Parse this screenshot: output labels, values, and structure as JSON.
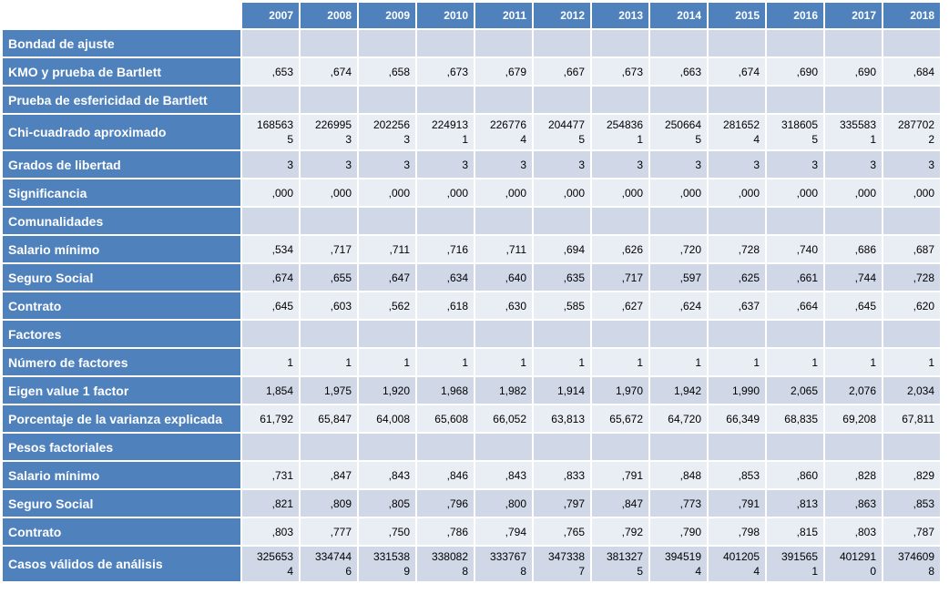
{
  "years": [
    "2007",
    "2008",
    "2009",
    "2010",
    "2011",
    "2012",
    "2013",
    "2014",
    "2015",
    "2016",
    "2017",
    "2018"
  ],
  "rows": [
    {
      "label": "Bondad de ajuste",
      "values": [
        "",
        "",
        "",
        "",
        "",
        "",
        "",
        "",
        "",
        "",
        "",
        ""
      ],
      "shade": "light"
    },
    {
      "label": "KMO y prueba de Bartlett",
      "values": [
        ",653",
        ",674",
        ",658",
        ",673",
        ",679",
        ",667",
        ",673",
        ",663",
        ",674",
        ",690",
        ",690",
        ",684"
      ],
      "shade": "pale"
    },
    {
      "label": "Prueba de esfericidad de Bartlett",
      "values": [
        "",
        "",
        "",
        "",
        "",
        "",
        "",
        "",
        "",
        "",
        "",
        ""
      ],
      "shade": "light"
    },
    {
      "label": "Chi-cuadrado aproximado",
      "values": [
        "1685635",
        "2269953",
        "2022563",
        "2249131",
        "2267764",
        "2044775",
        "2548361",
        "2506645",
        "2816524",
        "3186055",
        "3355831",
        "2877022"
      ],
      "shade": "pale",
      "tall": true
    },
    {
      "label": "Grados de libertad",
      "values": [
        "3",
        "3",
        "3",
        "3",
        "3",
        "3",
        "3",
        "3",
        "3",
        "3",
        "3",
        "3"
      ],
      "shade": "light"
    },
    {
      "label": "Significancia",
      "values": [
        ",000",
        ",000",
        ",000",
        ",000",
        ",000",
        ",000",
        ",000",
        ",000",
        ",000",
        ",000",
        ",000",
        ",000"
      ],
      "shade": "pale"
    },
    {
      "label": "Comunalidades",
      "values": [
        "",
        "",
        "",
        "",
        "",
        "",
        "",
        "",
        "",
        "",
        "",
        ""
      ],
      "shade": "light"
    },
    {
      "label": "Salario mínimo",
      "values": [
        ",534",
        ",717",
        ",711",
        ",716",
        ",711",
        ",694",
        ",626",
        ",720",
        ",728",
        ",740",
        ",686",
        ",687"
      ],
      "shade": "pale"
    },
    {
      "label": "Seguro Social",
      "values": [
        ",674",
        ",655",
        ",647",
        ",634",
        ",640",
        ",635",
        ",717",
        ",597",
        ",625",
        ",661",
        ",744",
        ",728"
      ],
      "shade": "light"
    },
    {
      "label": "Contrato",
      "values": [
        ",645",
        ",603",
        ",562",
        ",618",
        ",630",
        ",585",
        ",627",
        ",624",
        ",637",
        ",664",
        ",645",
        ",620"
      ],
      "shade": "pale"
    },
    {
      "label": "Factores",
      "values": [
        "",
        "",
        "",
        "",
        "",
        "",
        "",
        "",
        "",
        "",
        "",
        ""
      ],
      "shade": "light"
    },
    {
      "label": "Número de factores",
      "values": [
        "1",
        "1",
        "1",
        "1",
        "1",
        "1",
        "1",
        "1",
        "1",
        "1",
        "1",
        "1"
      ],
      "shade": "pale"
    },
    {
      "label": "Eigen value 1 factor",
      "values": [
        "1,854",
        "1,975",
        "1,920",
        "1,968",
        "1,982",
        "1,914",
        "1,970",
        "1,942",
        "1,990",
        "2,065",
        "2,076",
        "2,034"
      ],
      "shade": "light"
    },
    {
      "label": "Porcentaje de la varianza explicada",
      "values": [
        "61,792",
        "65,847",
        "64,008",
        "65,608",
        "66,052",
        "63,813",
        "65,672",
        "64,720",
        "66,349",
        "68,835",
        "69,208",
        "67,811"
      ],
      "shade": "pale"
    },
    {
      "label": "Pesos factoriales",
      "values": [
        "",
        "",
        "",
        "",
        "",
        "",
        "",
        "",
        "",
        "",
        "",
        ""
      ],
      "shade": "light"
    },
    {
      "label": "Salario mínimo",
      "values": [
        ",731",
        ",847",
        ",843",
        ",846",
        ",843",
        ",833",
        ",791",
        ",848",
        ",853",
        ",860",
        ",828",
        ",829"
      ],
      "shade": "pale"
    },
    {
      "label": "Seguro Social",
      "values": [
        ",821",
        ",809",
        ",805",
        ",796",
        ",800",
        ",797",
        ",847",
        ",773",
        ",791",
        ",813",
        ",863",
        ",853"
      ],
      "shade": "light"
    },
    {
      "label": "Contrato",
      "values": [
        ",803",
        ",777",
        ",750",
        ",786",
        ",794",
        ",765",
        ",792",
        ",790",
        ",798",
        ",815",
        ",803",
        ",787"
      ],
      "shade": "pale"
    },
    {
      "label": "Casos válidos de análisis",
      "values": [
        "3256534",
        "3347446",
        "3315389",
        "3380828",
        "3337678",
        "3473387",
        "3813275",
        "3945194",
        "4012054",
        "3915651",
        "4012910",
        "3746098"
      ],
      "shade": "light",
      "tall": true
    }
  ]
}
